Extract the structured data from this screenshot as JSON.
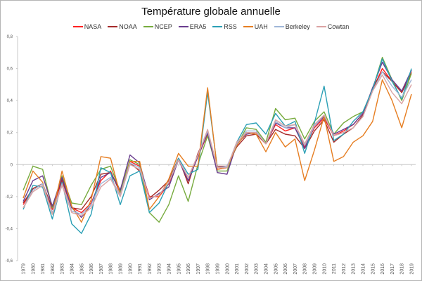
{
  "chart_data": {
    "type": "line",
    "title": "Température globale annuelle",
    "xlabel": "",
    "ylabel": "",
    "ylim": [
      -0.6,
      0.8
    ],
    "yticks": [
      "-0,6",
      "-0,4",
      "-0,2",
      "0",
      "0,2",
      "0,4",
      "0,6",
      "0,8"
    ],
    "ytick_values": [
      -0.6,
      -0.4,
      -0.2,
      0,
      0.2,
      0.4,
      0.6,
      0.8
    ],
    "legend_position": "top",
    "grid": false,
    "x": [
      "1979",
      "1980",
      "1981",
      "1982",
      "1983",
      "1984",
      "1985",
      "1986",
      "1987",
      "1988",
      "1989",
      "1990",
      "1991",
      "1992",
      "1993",
      "1994",
      "1995",
      "1996",
      "1997",
      "1998",
      "1999",
      "2000",
      "2001",
      "2002",
      "2003",
      "2004",
      "2005",
      "2006",
      "2007",
      "2008",
      "2009",
      "2010",
      "2011",
      "2012",
      "2013",
      "2014",
      "2015",
      "2016",
      "2017",
      "2018",
      "2019"
    ],
    "series": [
      {
        "name": "NASA",
        "color": "#ff2020",
        "values": [
          -0.25,
          -0.15,
          -0.12,
          -0.28,
          -0.1,
          -0.27,
          -0.3,
          -0.24,
          -0.1,
          -0.04,
          -0.18,
          0.02,
          -0.01,
          -0.2,
          -0.2,
          -0.12,
          0.03,
          -0.1,
          0.05,
          0.19,
          -0.03,
          -0.02,
          0.13,
          0.2,
          0.2,
          0.13,
          0.25,
          0.21,
          0.23,
          0.11,
          0.23,
          0.29,
          0.18,
          0.21,
          0.25,
          0.32,
          0.47,
          0.6,
          0.52,
          0.45,
          0.58
        ]
      },
      {
        "name": "NOAA",
        "color": "#a52a2a",
        "values": [
          -0.24,
          -0.15,
          -0.12,
          -0.27,
          -0.09,
          -0.27,
          -0.28,
          -0.2,
          -0.06,
          -0.05,
          -0.17,
          0.01,
          -0.04,
          -0.21,
          -0.16,
          -0.1,
          0.04,
          -0.12,
          0.07,
          0.2,
          -0.01,
          -0.01,
          0.11,
          0.18,
          0.19,
          0.13,
          0.22,
          0.19,
          0.18,
          0.1,
          0.21,
          0.28,
          0.14,
          0.19,
          0.23,
          0.31,
          0.48,
          0.58,
          0.52,
          0.45,
          0.57
        ]
      },
      {
        "name": "NCEP",
        "color": "#77ab3e",
        "values": [
          -0.16,
          -0.01,
          -0.03,
          -0.27,
          -0.07,
          -0.24,
          -0.25,
          -0.13,
          -0.03,
          -0.01,
          -0.17,
          0.03,
          0.0,
          -0.3,
          -0.36,
          -0.25,
          -0.07,
          -0.23,
          0.0,
          0.18,
          -0.04,
          -0.04,
          0.12,
          0.23,
          0.22,
          0.14,
          0.35,
          0.28,
          0.29,
          0.16,
          0.27,
          0.33,
          0.19,
          0.26,
          0.3,
          0.33,
          0.47,
          0.67,
          0.53,
          0.4,
          0.57
        ]
      },
      {
        "name": "ERA5",
        "color": "#6a3d8f",
        "values": [
          -0.23,
          -0.1,
          -0.07,
          -0.26,
          -0.08,
          -0.27,
          -0.33,
          -0.25,
          -0.08,
          -0.05,
          -0.16,
          0.06,
          0.01,
          -0.22,
          -0.18,
          -0.14,
          0.03,
          -0.1,
          0.05,
          0.2,
          -0.05,
          -0.06,
          0.13,
          0.19,
          0.2,
          0.13,
          0.26,
          0.23,
          0.23,
          0.1,
          0.24,
          0.3,
          0.19,
          0.22,
          0.25,
          0.32,
          0.48,
          0.64,
          0.53,
          0.46,
          0.59
        ]
      },
      {
        "name": "RSS",
        "color": "#2a9fb5",
        "values": [
          -0.28,
          -0.13,
          -0.14,
          -0.34,
          -0.11,
          -0.37,
          -0.43,
          -0.31,
          -0.02,
          -0.05,
          -0.25,
          -0.07,
          -0.04,
          -0.3,
          -0.24,
          -0.11,
          0.04,
          -0.06,
          -0.03,
          0.45,
          -0.02,
          -0.02,
          0.14,
          0.25,
          0.26,
          0.19,
          0.32,
          0.24,
          0.27,
          0.07,
          0.26,
          0.49,
          0.15,
          0.19,
          0.27,
          0.33,
          0.47,
          0.66,
          0.52,
          0.41,
          0.6
        ]
      },
      {
        "name": "UAH",
        "color": "#e67e22",
        "values": [
          -0.21,
          -0.04,
          -0.11,
          -0.31,
          -0.04,
          -0.26,
          -0.36,
          -0.22,
          0.05,
          0.04,
          -0.19,
          0.02,
          0.02,
          -0.28,
          -0.2,
          -0.09,
          0.07,
          -0.01,
          -0.01,
          0.48,
          -0.03,
          -0.02,
          0.12,
          0.2,
          0.19,
          0.08,
          0.2,
          0.11,
          0.16,
          -0.1,
          0.09,
          0.3,
          0.02,
          0.05,
          0.14,
          0.18,
          0.27,
          0.53,
          0.4,
          0.23,
          0.44
        ]
      },
      {
        "name": "Berkeley",
        "color": "#9fb6d8",
        "values": [
          -0.27,
          -0.16,
          -0.12,
          -0.3,
          -0.12,
          -0.29,
          -0.31,
          -0.25,
          -0.12,
          -0.08,
          -0.19,
          0.01,
          -0.02,
          -0.21,
          -0.19,
          -0.11,
          0.03,
          -0.08,
          0.06,
          0.21,
          -0.02,
          -0.01,
          0.13,
          0.21,
          0.21,
          0.13,
          0.27,
          0.23,
          0.25,
          0.12,
          0.24,
          0.31,
          0.18,
          0.2,
          0.23,
          0.3,
          0.46,
          0.58,
          0.49,
          0.42,
          0.53
        ]
      },
      {
        "name": "Cowtan",
        "color": "#dba3a3",
        "values": [
          -0.27,
          -0.17,
          -0.13,
          -0.31,
          -0.13,
          -0.3,
          -0.32,
          -0.27,
          -0.14,
          -0.09,
          -0.2,
          0.0,
          -0.03,
          -0.21,
          -0.19,
          -0.11,
          0.03,
          -0.08,
          0.06,
          0.22,
          -0.02,
          -0.02,
          0.14,
          0.2,
          0.2,
          0.13,
          0.28,
          0.24,
          0.25,
          0.13,
          0.25,
          0.31,
          0.18,
          0.2,
          0.23,
          0.3,
          0.46,
          0.56,
          0.45,
          0.38,
          0.5
        ]
      }
    ]
  }
}
